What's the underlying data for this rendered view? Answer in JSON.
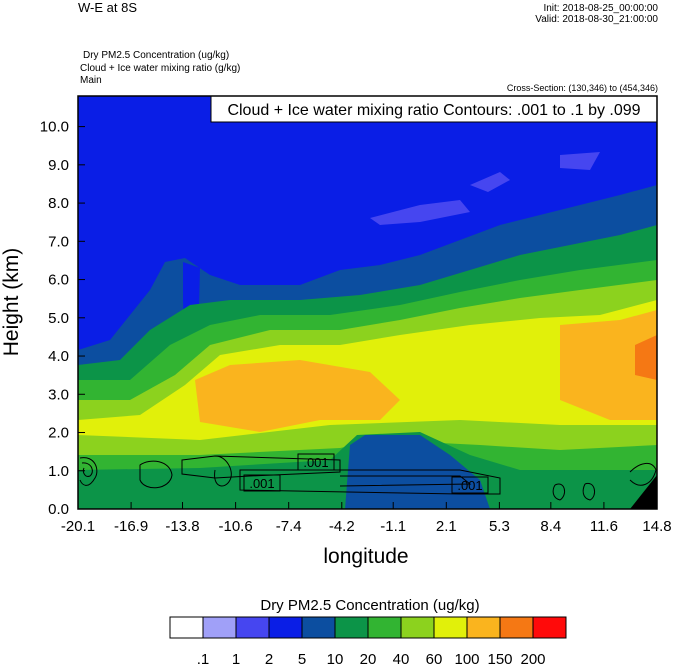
{
  "chart_data": {
    "type": "contour",
    "title": "W-E at 8S",
    "init": "Init: 2018-08-25_00:00:00",
    "valid": "Valid: 2018-08-30_21:00:00",
    "field_labels": [
      "Dry PM2.5 Concentration   (ug/kg)",
      "Cloud + Ice water mixing ratio   (g/kg)",
      "Main"
    ],
    "cross_section": "Cross-Section: (130,346) to (454,346)",
    "contour_note": "Cloud + Ice water mixing ratio Contours: .001 to .1 by .099",
    "contour_labels": [
      ".001",
      ".001",
      ".001"
    ],
    "xlabel": "longitude",
    "ylabel": "Height (km)",
    "xlim": [
      -20.1,
      14.8
    ],
    "xticks": [
      -20.1,
      -16.9,
      -13.8,
      -10.6,
      -7.4,
      -4.2,
      -1.1,
      2.1,
      5.3,
      8.4,
      11.6,
      14.8
    ],
    "ylim": [
      0,
      10.8
    ],
    "yticks": [
      {
        "value": 0,
        "label": "0.0"
      },
      {
        "value": 1,
        "label": "1.0"
      },
      {
        "value": 2,
        "label": "2.0"
      },
      {
        "value": 3,
        "label": "3.0"
      },
      {
        "value": 4,
        "label": "4.0"
      },
      {
        "value": 5,
        "label": "5.0"
      },
      {
        "value": 6,
        "label": "6.0"
      },
      {
        "value": 7,
        "label": "7.0"
      },
      {
        "value": 8,
        "label": "8.0"
      },
      {
        "value": 9,
        "label": "9.0"
      },
      {
        "value": 10,
        "label": "10.0"
      }
    ],
    "colorbar": {
      "title": "Dry PM2.5 Concentration  (ug/kg)",
      "levels": [
        {
          "value": 0.1,
          "label": ".1"
        },
        1,
        2,
        5,
        10,
        20,
        40,
        60,
        100,
        150,
        200
      ],
      "colors": [
        "#ffffff",
        "#a0a0f8",
        "#4646f0",
        "#0a1ee6",
        "#0c4ea0",
        "#0c9448",
        "#32b432",
        "#8cd21e",
        "#e1f00a",
        "#fab41e",
        "#f57814",
        "#ff0a0a"
      ]
    }
  }
}
